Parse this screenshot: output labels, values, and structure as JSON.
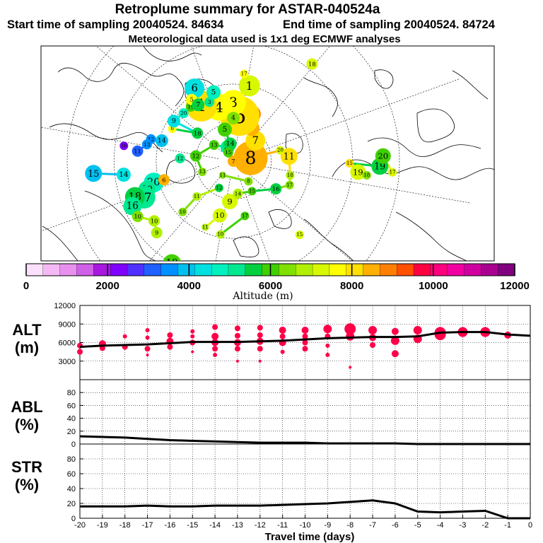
{
  "title": "Retroplume summary for ASTAR-040524a",
  "subtitle_start": "Start time of sampling 20040524. 84634",
  "subtitle_end": "End time of sampling 20040524. 84724",
  "meteo_note": "Meteorological data used is 1x1 deg ECMWF analyses",
  "colorbar": {
    "label": "Altitude (m)",
    "ticks": [
      "0",
      "2000",
      "4000",
      "6000",
      "8000",
      "10000",
      "12000"
    ],
    "colors": [
      "#fbe0fb",
      "#f4b8f4",
      "#e890ee",
      "#d060e8",
      "#a818e0",
      "#8000ff",
      "#5030ff",
      "#2060ff",
      "#0090ff",
      "#00c0f0",
      "#00e0e0",
      "#00f0c0",
      "#00e890",
      "#00d040",
      "#40d000",
      "#80e000",
      "#b0f000",
      "#d8f800",
      "#ffff00",
      "#ffe000",
      "#ffb000",
      "#ff8000",
      "#ff5000",
      "#ff0040",
      "#ff0080",
      "#f000a0",
      "#d000a0",
      "#a80090",
      "#800080"
    ]
  },
  "map_plumes": [
    {
      "label": "20",
      "lon": -95,
      "lat": 58,
      "alt": 4800,
      "size": 14
    },
    {
      "label": "19",
      "lon": -92,
      "lat": 55,
      "alt": 5200,
      "size": 12
    },
    {
      "label": "17",
      "lon": -88,
      "lat": 53,
      "alt": 5000,
      "size": 16
    },
    {
      "label": "18",
      "lon": -90,
      "lat": 50,
      "alt": 5400,
      "size": 14
    },
    {
      "label": "16",
      "lon": -86,
      "lat": 48,
      "alt": 5200,
      "size": 13
    },
    {
      "label": "14",
      "lon": -103,
      "lat": 48,
      "alt": 4300,
      "size": 10
    },
    {
      "label": "15",
      "lon": -105,
      "lat": 38,
      "alt": 4100,
      "size": 12
    },
    {
      "label": "10",
      "lon": -80,
      "lat": 48,
      "alt": 6400,
      "size": 8
    },
    {
      "label": "10",
      "lon": -73,
      "lat": 52,
      "alt": 6800,
      "size": 8
    },
    {
      "label": "9",
      "lon": -67,
      "lat": 50,
      "alt": 6900,
      "size": 8
    },
    {
      "label": "11",
      "lon": -43,
      "lat": 62,
      "alt": 6900,
      "size": 5
    },
    {
      "label": "10",
      "lon": -34,
      "lat": 68,
      "alt": 7200,
      "size": 10
    },
    {
      "label": "15",
      "lon": 22,
      "lat": 52,
      "alt": 7300,
      "size": 6
    },
    {
      "label": "9",
      "lon": -25,
      "lat": 74,
      "alt": 7100,
      "size": 11
    },
    {
      "label": "14",
      "lon": -12,
      "lat": 77,
      "alt": 6700,
      "size": 7
    },
    {
      "label": "15",
      "lon": 12,
      "lat": 76,
      "alt": 5800,
      "size": 6
    },
    {
      "label": "16",
      "lon": 37,
      "lat": 70,
      "alt": 5700,
      "size": 8
    },
    {
      "label": "17",
      "lon": 47,
      "lat": 66,
      "alt": 6300,
      "size": 6
    },
    {
      "label": "18",
      "lon": 56,
      "lat": 67,
      "alt": 6900,
      "size": 6
    },
    {
      "label": "11",
      "lon": 75,
      "lat": 68,
      "alt": 7900,
      "size": 12
    },
    {
      "label": "20",
      "lon": 83,
      "lat": 71,
      "alt": 7300,
      "size": 6
    },
    {
      "label": "8",
      "lon": 80,
      "lat": 83,
      "alt": 8500,
      "size": 24
    },
    {
      "label": "7",
      "lon": 113,
      "lat": 78,
      "alt": 8200,
      "size": 14
    },
    {
      "label": "7",
      "lon": 112,
      "lat": 90,
      "alt": 8500,
      "size": 8
    },
    {
      "label": "6",
      "lon": 131,
      "lat": 75,
      "alt": 8400,
      "size": 11
    },
    {
      "label": "10",
      "lon": 138,
      "lat": 70,
      "alt": 8700,
      "size": 12
    },
    {
      "label": "5",
      "lon": 152,
      "lat": 72,
      "alt": 8200,
      "size": 28
    },
    {
      "label": "3",
      "lon": 160,
      "lat": 67,
      "alt": 7700,
      "size": 18
    },
    {
      "label": "1",
      "lon": 148,
      "lat": 60,
      "alt": 7300,
      "size": 15
    },
    {
      "label": "4",
      "lon": 175,
      "lat": 68,
      "alt": 7600,
      "size": 19
    },
    {
      "label": "1",
      "lon": -170,
      "lat": 65,
      "alt": 7900,
      "size": 22
    },
    {
      "label": "17",
      "lon": 153,
      "lat": 56,
      "alt": 7800,
      "size": 6
    },
    {
      "label": "18",
      "lon": 121,
      "lat": 43,
      "alt": 7400,
      "size": 8
    },
    {
      "label": "12",
      "lon": -48,
      "lat": 78,
      "alt": 5500,
      "size": 6
    },
    {
      "label": "11",
      "lon": -66,
      "lat": 70,
      "alt": 6700,
      "size": 6
    },
    {
      "label": "10",
      "lon": -65,
      "lat": 62,
      "alt": 6400,
      "size": 6
    },
    {
      "label": "13",
      "lon": -91,
      "lat": 77,
      "alt": 6300,
      "size": 6
    },
    {
      "label": "12",
      "lon": -118,
      "lat": 75,
      "alt": 6200,
      "size": 8
    },
    {
      "label": "13",
      "lon": -150,
      "lat": 80,
      "alt": 5900,
      "size": 7
    },
    {
      "label": "15",
      "lon": -178,
      "lat": 84,
      "alt": 5300,
      "size": 10
    },
    {
      "label": "6",
      "lon": -95,
      "lat": 62,
      "alt": 8300,
      "size": 8
    },
    {
      "label": "14",
      "lon": -126,
      "lat": 61,
      "alt": 3900,
      "size": 9
    },
    {
      "label": "12",
      "lon": -125,
      "lat": 57,
      "alt": 3500,
      "size": 7
    },
    {
      "label": "13",
      "lon": -121,
      "lat": 56,
      "alt": 3400,
      "size": 7
    },
    {
      "label": "11",
      "lon": -116,
      "lat": 53,
      "alt": 3300,
      "size": 8
    },
    {
      "label": "6",
      "lon": -138,
      "lat": 63,
      "alt": 7700,
      "size": 6
    },
    {
      "label": "18",
      "lon": -148,
      "lat": 72,
      "alt": 5400,
      "size": 8
    },
    {
      "label": "9",
      "lon": -144,
      "lat": 62,
      "alt": 4300,
      "size": 9
    },
    {
      "label": "20",
      "lon": -154,
      "lat": 63,
      "alt": 4800,
      "size": 7
    },
    {
      "label": "19",
      "lon": -162,
      "lat": 63,
      "alt": 5900,
      "size": 7
    },
    {
      "label": "6",
      "lon": -172,
      "lat": 58,
      "alt": 4500,
      "size": 14
    },
    {
      "label": "5",
      "lon": -166,
      "lat": 61,
      "alt": 7700,
      "size": 8
    },
    {
      "label": "7",
      "lon": -168,
      "lat": 64,
      "alt": 5600,
      "size": 9
    },
    {
      "label": "3",
      "lon": -178,
      "lat": 65,
      "alt": 5200,
      "size": 7
    },
    {
      "label": "5",
      "lon": 176,
      "lat": 62,
      "alt": 4600,
      "size": 10
    },
    {
      "label": "16",
      "lon": -118,
      "lat": 48,
      "alt": 2200,
      "size": 6
    },
    {
      "label": "19",
      "lon": 65,
      "lat": 43,
      "alt": 7300,
      "size": 11
    },
    {
      "label": "18",
      "lon": 64,
      "lat": 40,
      "alt": 6600,
      "size": 6
    },
    {
      "label": "15",
      "lon": 69,
      "lat": 46,
      "alt": 7900,
      "size": 6
    },
    {
      "label": "19",
      "lon": 68,
      "lat": 36,
      "alt": 5400,
      "size": 12
    },
    {
      "label": "20",
      "lon": 72,
      "lat": 35,
      "alt": 5800,
      "size": 11
    },
    {
      "label": "17",
      "lon": 66,
      "lat": 32,
      "alt": 7200,
      "size": 6
    },
    {
      "label": "19",
      "lon": 117,
      "lat": 26,
      "alt": 5900,
      "size": 5
    },
    {
      "label": "20",
      "lon": 112,
      "lat": 20,
      "alt": 6000,
      "size": 5
    },
    {
      "label": "12",
      "lon": -113,
      "lat": 69,
      "alt": 5000,
      "size": 7
    },
    {
      "label": "10",
      "lon": -30,
      "lat": 61,
      "alt": 6800,
      "size": 6
    },
    {
      "label": "17",
      "lon": -8,
      "lat": 68,
      "alt": 6000,
      "size": 6
    },
    {
      "label": "19",
      "lon": -51,
      "lat": 45,
      "alt": 6200,
      "size": 13
    },
    {
      "label": "8",
      "lon": 17,
      "lat": 80,
      "alt": 6400,
      "size": 6
    },
    {
      "label": "11",
      "lon": -57,
      "lat": 83,
      "alt": 6400,
      "size": 5
    },
    {
      "label": "4",
      "lon": 160,
      "lat": 73,
      "alt": 6400,
      "size": 9
    },
    {
      "label": "5",
      "lon": 175,
      "lat": 77,
      "alt": 5800,
      "size": 10
    },
    {
      "label": "14",
      "lon": 170,
      "lat": 83,
      "alt": 5600,
      "size": 9
    },
    {
      "label": "15",
      "lon": -170,
      "lat": 86,
      "alt": 6200,
      "size": 7
    }
  ],
  "chart_data": [
    {
      "type": "scatter",
      "title": "ALT (m)",
      "panel_title_line1": "ALT",
      "panel_title_line2": "(m)",
      "xlabel": "Travel time (days)",
      "ylabel": "Altitude (m)",
      "xlim": [
        -20,
        0
      ],
      "ylim": [
        0,
        12000
      ],
      "yticks": [
        "12000",
        "9000",
        "6000",
        "3000"
      ],
      "line": {
        "x": [
          -20,
          -19,
          -18,
          -17,
          -16,
          -15,
          -14,
          -13,
          -12,
          -11,
          -10,
          -9,
          -8,
          -7,
          -6,
          -5,
          -4,
          -3,
          -2,
          -1,
          0
        ],
        "y": [
          5300,
          5500,
          5600,
          5700,
          5900,
          6100,
          6100,
          6100,
          6200,
          6300,
          6500,
          6700,
          6800,
          6900,
          6900,
          7000,
          7600,
          7700,
          7700,
          7300,
          7100
        ]
      },
      "points": [
        {
          "x": -20,
          "y": 5500,
          "size": 4
        },
        {
          "x": -20,
          "y": 4500,
          "size": 4
        },
        {
          "x": -19,
          "y": 5800,
          "size": 5
        },
        {
          "x": -19,
          "y": 5100,
          "size": 4
        },
        {
          "x": -18,
          "y": 7000,
          "size": 3
        },
        {
          "x": -18,
          "y": 5300,
          "size": 4
        },
        {
          "x": -17,
          "y": 8000,
          "size": 3
        },
        {
          "x": -17,
          "y": 6800,
          "size": 3
        },
        {
          "x": -17,
          "y": 5000,
          "size": 4
        },
        {
          "x": -17,
          "y": 4000,
          "size": 2
        },
        {
          "x": -16,
          "y": 7200,
          "size": 4
        },
        {
          "x": -16,
          "y": 6200,
          "size": 5
        },
        {
          "x": -16,
          "y": 5300,
          "size": 4
        },
        {
          "x": -15,
          "y": 7800,
          "size": 3
        },
        {
          "x": -15,
          "y": 7000,
          "size": 3
        },
        {
          "x": -15,
          "y": 6000,
          "size": 4
        },
        {
          "x": -15,
          "y": 4500,
          "size": 2
        },
        {
          "x": -14,
          "y": 8500,
          "size": 4
        },
        {
          "x": -14,
          "y": 7000,
          "size": 5
        },
        {
          "x": -14,
          "y": 6000,
          "size": 5
        },
        {
          "x": -14,
          "y": 5000,
          "size": 4
        },
        {
          "x": -14,
          "y": 4000,
          "size": 3
        },
        {
          "x": -13,
          "y": 8300,
          "size": 4
        },
        {
          "x": -13,
          "y": 7100,
          "size": 4
        },
        {
          "x": -13,
          "y": 6000,
          "size": 5
        },
        {
          "x": -13,
          "y": 5000,
          "size": 4
        },
        {
          "x": -13,
          "y": 3000,
          "size": 2
        },
        {
          "x": -12,
          "y": 8400,
          "size": 4
        },
        {
          "x": -12,
          "y": 7200,
          "size": 4
        },
        {
          "x": -12,
          "y": 6200,
          "size": 5
        },
        {
          "x": -12,
          "y": 5000,
          "size": 4
        },
        {
          "x": -12,
          "y": 3000,
          "size": 2
        },
        {
          "x": -11,
          "y": 8000,
          "size": 5
        },
        {
          "x": -11,
          "y": 7000,
          "size": 4
        },
        {
          "x": -11,
          "y": 6000,
          "size": 5
        },
        {
          "x": -11,
          "y": 4500,
          "size": 3
        },
        {
          "x": -10,
          "y": 8000,
          "size": 5
        },
        {
          "x": -10,
          "y": 7000,
          "size": 4
        },
        {
          "x": -10,
          "y": 6000,
          "size": 4
        },
        {
          "x": -10,
          "y": 5000,
          "size": 4
        },
        {
          "x": -9,
          "y": 8200,
          "size": 6
        },
        {
          "x": -9,
          "y": 7000,
          "size": 4
        },
        {
          "x": -9,
          "y": 5500,
          "size": 3
        },
        {
          "x": -9,
          "y": 4000,
          "size": 3
        },
        {
          "x": -8,
          "y": 8200,
          "size": 8
        },
        {
          "x": -8,
          "y": 7000,
          "size": 6
        },
        {
          "x": -8,
          "y": 2000,
          "size": 2
        },
        {
          "x": -7,
          "y": 8000,
          "size": 6
        },
        {
          "x": -7,
          "y": 6800,
          "size": 5
        },
        {
          "x": -7,
          "y": 5600,
          "size": 4
        },
        {
          "x": -6,
          "y": 7800,
          "size": 5
        },
        {
          "x": -6,
          "y": 6300,
          "size": 6
        },
        {
          "x": -6,
          "y": 4200,
          "size": 5
        },
        {
          "x": -5,
          "y": 8000,
          "size": 6
        },
        {
          "x": -5,
          "y": 6600,
          "size": 6
        },
        {
          "x": -4,
          "y": 7600,
          "size": 8
        },
        {
          "x": -4,
          "y": 7300,
          "size": 8
        },
        {
          "x": -3,
          "y": 7700,
          "size": 7
        },
        {
          "x": -2,
          "y": 7700,
          "size": 7
        },
        {
          "x": -1,
          "y": 7200,
          "size": 5
        }
      ],
      "point_color": "#ff0048"
    },
    {
      "type": "line",
      "title": "ABL (%)",
      "panel_title_line1": "ABL",
      "panel_title_line2": "(%)",
      "xlabel": "Travel time (days)",
      "ylabel": "%",
      "xlim": [
        -20,
        0
      ],
      "ylim": [
        0,
        100
      ],
      "yticks": [
        "80",
        "60",
        "40",
        "20",
        "0"
      ],
      "x": [
        -20,
        -19,
        -18,
        -17,
        -16,
        -15,
        -14,
        -13,
        -12,
        -11,
        -10,
        -9,
        -8,
        -7,
        -6,
        -5,
        -4,
        -3,
        -2,
        -1,
        0
      ],
      "y": [
        12,
        11,
        10,
        8,
        6,
        5,
        4,
        3,
        2,
        2,
        2,
        1,
        1,
        1,
        1,
        0,
        0,
        0,
        0,
        0,
        0
      ]
    },
    {
      "type": "line",
      "title": "STR (%)",
      "panel_title_line1": "STR",
      "panel_title_line2": "(%)",
      "xlabel": "Travel time (days)",
      "ylabel": "%",
      "xlim": [
        -20,
        0
      ],
      "ylim": [
        0,
        100
      ],
      "yticks": [
        "80",
        "60",
        "40",
        "20",
        "0"
      ],
      "xticks": [
        "-20",
        "-19",
        "-18",
        "-17",
        "-16",
        "-15",
        "-14",
        "-13",
        "-12",
        "-11",
        "-10",
        "-9",
        "-8",
        "-7",
        "-6",
        "-5",
        "-4",
        "-3",
        "-2",
        "-1",
        "0"
      ],
      "x": [
        -20,
        -19,
        -18,
        -17,
        -16,
        -15,
        -14,
        -13,
        -12,
        -11,
        -10,
        -9,
        -8,
        -7,
        -6,
        -5,
        -4,
        -3,
        -2,
        -1,
        0
      ],
      "y": [
        16,
        16,
        16,
        17,
        16,
        16,
        17,
        17,
        17,
        18,
        19,
        20,
        22,
        24,
        20,
        9,
        8,
        9,
        10,
        0,
        0
      ]
    }
  ]
}
